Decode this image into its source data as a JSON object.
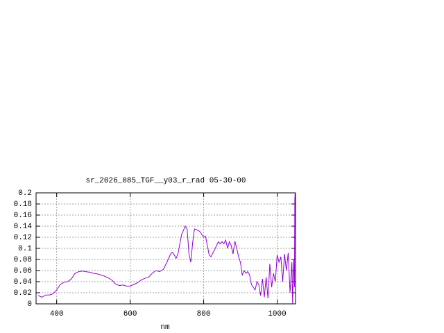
{
  "chart_data": {
    "type": "line",
    "title": "sr_2026_085_TGF__y03_r_rad 05-30-00",
    "xlabel": "nm",
    "x": [
      350,
      360,
      370,
      380,
      390,
      400,
      410,
      420,
      430,
      440,
      450,
      460,
      470,
      480,
      490,
      500,
      510,
      520,
      530,
      540,
      550,
      560,
      570,
      580,
      590,
      600,
      610,
      620,
      630,
      640,
      650,
      660,
      670,
      680,
      690,
      700,
      710,
      715,
      720,
      725,
      730,
      740,
      750,
      755,
      760,
      765,
      770,
      775,
      780,
      790,
      800,
      805,
      810,
      815,
      820,
      830,
      840,
      845,
      850,
      855,
      860,
      865,
      870,
      875,
      880,
      885,
      890,
      895,
      900,
      905,
      910,
      915,
      920,
      925,
      930,
      935,
      940,
      945,
      950,
      955,
      960,
      965,
      970,
      975,
      980,
      985,
      990,
      995,
      1000,
      1005,
      1010,
      1015,
      1020,
      1025,
      1030,
      1035,
      1040,
      1042,
      1045,
      1047,
      1048,
      1049
    ],
    "series": [
      {
        "color": "#9400d3",
        "values": [
          0.015,
          0.012,
          0.016,
          0.016,
          0.018,
          0.025,
          0.035,
          0.039,
          0.04,
          0.045,
          0.055,
          0.058,
          0.059,
          0.058,
          0.057,
          0.055,
          0.054,
          0.052,
          0.05,
          0.047,
          0.043,
          0.036,
          0.033,
          0.034,
          0.032,
          0.032,
          0.035,
          0.038,
          0.043,
          0.046,
          0.048,
          0.055,
          0.06,
          0.058,
          0.062,
          0.075,
          0.09,
          0.093,
          0.088,
          0.082,
          0.09,
          0.125,
          0.14,
          0.135,
          0.09,
          0.075,
          0.11,
          0.135,
          0.134,
          0.13,
          0.12,
          0.122,
          0.105,
          0.088,
          0.085,
          0.098,
          0.112,
          0.108,
          0.112,
          0.108,
          0.115,
          0.1,
          0.112,
          0.105,
          0.09,
          0.113,
          0.1,
          0.085,
          0.075,
          0.052,
          0.06,
          0.055,
          0.058,
          0.052,
          0.035,
          0.03,
          0.025,
          0.04,
          0.035,
          0.015,
          0.045,
          0.012,
          0.048,
          0.01,
          0.072,
          0.03,
          0.055,
          0.04,
          0.088,
          0.075,
          0.085,
          0.04,
          0.09,
          0.06,
          0.092,
          0.02,
          0.075,
          0.0,
          0.08,
          0.03,
          0.19,
          0.2
        ]
      }
    ],
    "xlim": [
      344,
      1050
    ],
    "xticks": [
      400,
      600,
      800,
      1000
    ],
    "ylim": [
      0,
      0.2
    ],
    "yticks": [
      0,
      0.02,
      0.04,
      0.06,
      0.08,
      0.1,
      0.12,
      0.14,
      0.16,
      0.18,
      0.2
    ],
    "grid": true
  }
}
